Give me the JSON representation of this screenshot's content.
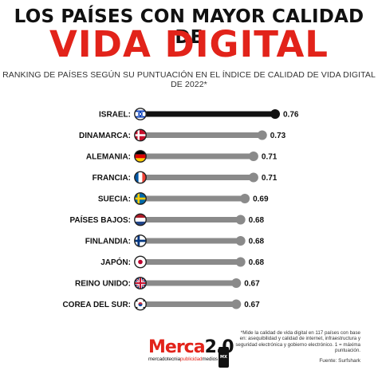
{
  "header": {
    "title_line1": "LOS PAÍSES CON  MAYOR CALIDAD DE",
    "title_line2": "VIDA DIGITAL",
    "subtitle": "RANKING DE PAÍSES SEGÚN SU PUNTUACIÓN EN EL ÍNDICE DE CALIDAD DE VIDA DIGITAL DE 2022*"
  },
  "colors": {
    "accent": "#e2231a",
    "top_bar": "#111111",
    "bar": "#8a8a8a",
    "text": "#111111"
  },
  "chart_data": {
    "type": "bar",
    "orientation": "horizontal",
    "title": "LOS PAÍSES CON MAYOR CALIDAD DE VIDA DIGITAL",
    "subtitle": "RANKING DE PAÍSES SEGÚN SU PUNTUACIÓN EN EL ÍNDICE DE CALIDAD DE VIDA DIGITAL DE 2022*",
    "categories": [
      "ISRAEL",
      "DINAMARCA",
      "ALEMANIA",
      "FRANCIA",
      "SUECIA",
      "PAÍSES BAJOS",
      "FINLANDIA",
      "JAPÓN",
      "REINO UNIDO",
      "COREA DEL SUR"
    ],
    "values": [
      0.76,
      0.73,
      0.71,
      0.71,
      0.69,
      0.68,
      0.68,
      0.68,
      0.67,
      0.67
    ],
    "labels": [
      "0.76",
      "0.73",
      "0.71",
      "0.71",
      "0.69",
      "0.68",
      "0.68",
      "0.68",
      "0.67",
      "0.67"
    ],
    "flags": [
      "israel-flag-icon",
      "denmark-flag-icon",
      "germany-flag-icon",
      "france-flag-icon",
      "sweden-flag-icon",
      "netherlands-flag-icon",
      "finland-flag-icon",
      "japan-flag-icon",
      "uk-flag-icon",
      "south-korea-flag-icon"
    ],
    "xlim": [
      0,
      0.76
    ],
    "grid": false,
    "legend": "none"
  },
  "footnote": "*Mide la calidad de vida digital en 117 países con base en: asequibilidad y calidad de internet, infraestructura y seguridad electrónica y gobierno electrónico. 1 = máxima puntuación.",
  "source": "Fuente: Surfshark",
  "logo": {
    "main": "Merca2.0",
    "badge": "MX",
    "sub_parts": [
      "mercadotecnia",
      "publicidad",
      "medios"
    ]
  }
}
